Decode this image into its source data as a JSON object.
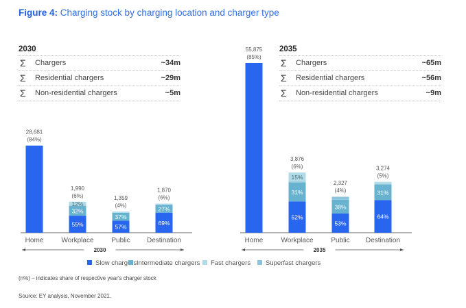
{
  "title": {
    "prefix": "Figure 4:",
    "text": " Charging stock by charging location and charger type"
  },
  "summaries": [
    {
      "year": "2030",
      "rows": [
        {
          "symbol": "Σ",
          "label": "Chargers",
          "value": "~34m"
        },
        {
          "symbol": "Σ",
          "label": "Residential chargers",
          "value": "~29m"
        },
        {
          "symbol": "Σ",
          "label": "Non-residential chargers",
          "value": "~5m"
        }
      ]
    },
    {
      "year": "2035",
      "rows": [
        {
          "symbol": "Σ",
          "label": "Chargers",
          "value": "~65m"
        },
        {
          "symbol": "Σ",
          "label": "Residential chargers",
          "value": "~56m"
        },
        {
          "symbol": "Σ",
          "label": "Non-residential chargers",
          "value": "~9m"
        }
      ]
    }
  ],
  "colors": {
    "slow": "#2966f0",
    "intermediate": "#67b2cf",
    "fast": "#b2dbe8",
    "superfast": "#8cc4dc",
    "text": "#555555",
    "axis": "#666666"
  },
  "chart_data": {
    "type": "bar",
    "title": "Charging stock by charging location and charger type",
    "xlabel": "",
    "ylabel": "",
    "categories": [
      "Home",
      "Workplace",
      "Public",
      "Destination"
    ],
    "legend": [
      "Slow chargers",
      "Intermediate chargers",
      "Fast chargers",
      "Superfast chargers"
    ],
    "legend_position": "bottom",
    "groups": [
      {
        "year": "2030",
        "bars": [
          {
            "category": "Home",
            "total": 28681,
            "total_label": "28,681",
            "share_label": "(84%)",
            "segments": {
              "slow": 100,
              "intermediate": 0,
              "fast": 0,
              "superfast": 0
            },
            "segment_labels": {}
          },
          {
            "category": "Workplace",
            "total": 1990,
            "total_label": "1,990",
            "share_label": "(6%)",
            "segments": {
              "slow": 55,
              "intermediate": 32,
              "fast": 12,
              "superfast": 1
            },
            "segment_labels": {
              "slow": "55%",
              "intermediate": "32%",
              "fast": "12%"
            }
          },
          {
            "category": "Public",
            "total": 1359,
            "total_label": "1,359",
            "share_label": "(4%)",
            "segments": {
              "slow": 57,
              "intermediate": 37,
              "fast": 5,
              "superfast": 1
            },
            "segment_labels": {
              "slow": "57%",
              "intermediate": "37%"
            }
          },
          {
            "category": "Destination",
            "total": 1870,
            "total_label": "1,870",
            "share_label": "(6%)",
            "segments": {
              "slow": 69,
              "intermediate": 27,
              "fast": 3,
              "superfast": 1
            },
            "segment_labels": {
              "slow": "69%",
              "intermediate": "27%"
            }
          }
        ]
      },
      {
        "year": "2035",
        "bars": [
          {
            "category": "Home",
            "total": 55875,
            "total_label": "55,875",
            "share_label": "(85%)",
            "segments": {
              "slow": 100,
              "intermediate": 0,
              "fast": 0,
              "superfast": 0
            },
            "segment_labels": {}
          },
          {
            "category": "Workplace",
            "total": 3876,
            "total_label": "3,876",
            "share_label": "(6%)",
            "segments": {
              "slow": 52,
              "intermediate": 31,
              "fast": 15,
              "superfast": 2
            },
            "segment_labels": {
              "slow": "52%",
              "intermediate": "31%",
              "fast": "15%"
            }
          },
          {
            "category": "Public",
            "total": 2327,
            "total_label": "2,327",
            "share_label": "(4%)",
            "segments": {
              "slow": 53,
              "intermediate": 38,
              "fast": 1,
              "superfast": 8
            },
            "segment_labels": {
              "slow": "53%",
              "intermediate": "38%"
            }
          },
          {
            "category": "Destination",
            "total": 3274,
            "total_label": "3,274",
            "share_label": "(5%)",
            "segments": {
              "slow": 64,
              "intermediate": 31,
              "fast": 5,
              "superfast": 0
            },
            "segment_labels": {
              "slow": "64%",
              "intermediate": "31%"
            }
          }
        ]
      }
    ]
  },
  "footnotes": {
    "note": "(n%) – indicates share of respective year's charger stock",
    "source": "Source: EY analysis, November 2021."
  }
}
